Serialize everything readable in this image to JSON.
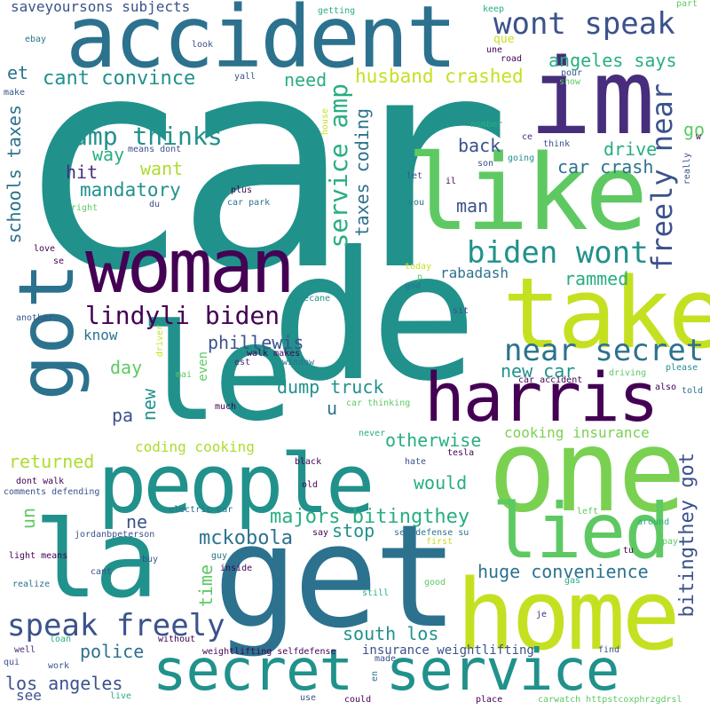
{
  "palette": {
    "deep_purple": "#440154",
    "indigo": "#472d7b",
    "blue_violet": "#3b528b",
    "steel_blue": "#2c728e",
    "teal": "#21918c",
    "sea_green": "#28ae80",
    "green": "#5ec962",
    "lime": "#addc30",
    "yellow_green": "#c5e021"
  },
  "words": [
    {
      "text": "car",
      "color": "#21918c"
    },
    {
      "text": "de",
      "color": "#21918c"
    },
    {
      "text": "accident",
      "color": "#2c728e"
    },
    {
      "text": "im",
      "color": "#472d7b"
    },
    {
      "text": "like",
      "color": "#5ec962"
    },
    {
      "text": "woman",
      "color": "#440154"
    },
    {
      "text": "le",
      "color": "#21918c"
    },
    {
      "text": "got",
      "color": "#2c728e"
    },
    {
      "text": "take",
      "color": "#c5e021"
    },
    {
      "text": "harris",
      "color": "#440154"
    },
    {
      "text": "one",
      "color": "#7ad151"
    },
    {
      "text": "people",
      "color": "#21918c"
    },
    {
      "text": "la",
      "color": "#21918c"
    },
    {
      "text": "get",
      "color": "#2c728e"
    },
    {
      "text": "home",
      "color": "#c5e021"
    },
    {
      "text": "lied",
      "color": "#5ec962"
    },
    {
      "text": "secret service",
      "color": "#21918c"
    },
    {
      "text": "wont speak",
      "color": "#3b528b"
    },
    {
      "text": "angeles says",
      "color": "#28ae80"
    },
    {
      "text": "cant convince",
      "color": "#21918c"
    },
    {
      "text": "husband crashed",
      "color": "#c5e021"
    },
    {
      "text": "amp thinks",
      "color": "#21918c"
    },
    {
      "text": "service amp",
      "color": "#28ae80"
    },
    {
      "text": "freely near",
      "color": "#3b528b"
    },
    {
      "text": "biden wont",
      "color": "#21918c"
    },
    {
      "text": "lindyli biden",
      "color": "#440154"
    },
    {
      "text": "near secret",
      "color": "#2c728e"
    },
    {
      "text": "speak freely",
      "color": "#3b528b"
    },
    {
      "text": "majors bitingthey",
      "color": "#28ae80"
    },
    {
      "text": "mckobola",
      "color": "#2c728e"
    },
    {
      "text": "huge convenience",
      "color": "#2c728e"
    },
    {
      "text": "bitingthey got",
      "color": "#3b528b"
    },
    {
      "text": "car crash",
      "color": "#2c728e"
    },
    {
      "text": "drive",
      "color": "#28ae80"
    },
    {
      "text": "mandatory",
      "color": "#21918c"
    },
    {
      "text": "want",
      "color": "#addc30"
    },
    {
      "text": "way",
      "color": "#28ae80"
    },
    {
      "text": "hit",
      "color": "#472d7b"
    },
    {
      "text": "back",
      "color": "#3b528b"
    },
    {
      "text": "man",
      "color": "#3b528b"
    },
    {
      "text": "need",
      "color": "#28ae80"
    },
    {
      "text": "et",
      "color": "#2c728e"
    },
    {
      "text": "schools taxes",
      "color": "#2c728e"
    },
    {
      "text": "taxes coding",
      "color": "#2c728e"
    },
    {
      "text": "go",
      "color": "#5ec962"
    },
    {
      "text": "rabadash",
      "color": "#2c728e"
    },
    {
      "text": "rammed",
      "color": "#28ae80"
    },
    {
      "text": "phillewis",
      "color": "#3b528b"
    },
    {
      "text": "know",
      "color": "#2c728e"
    },
    {
      "text": "day",
      "color": "#5ec962"
    },
    {
      "text": "pa",
      "color": "#3b528b"
    },
    {
      "text": "new",
      "color": "#21918c"
    },
    {
      "text": "dump truck",
      "color": "#21918c"
    },
    {
      "text": "new car",
      "color": "#21918c"
    },
    {
      "text": "u",
      "color": "#2c728e"
    },
    {
      "text": "otherwise",
      "color": "#28ae80"
    },
    {
      "text": "cooking insurance",
      "color": "#7ad151"
    },
    {
      "text": "coding cooking",
      "color": "#addc30"
    },
    {
      "text": "returned",
      "color": "#addc30"
    },
    {
      "text": "would",
      "color": "#28ae80"
    },
    {
      "text": "ne",
      "color": "#3b528b"
    },
    {
      "text": "un",
      "color": "#5ec962"
    },
    {
      "text": "stop",
      "color": "#21918c"
    },
    {
      "text": "police",
      "color": "#2c728e"
    },
    {
      "text": "time",
      "color": "#5ec962"
    },
    {
      "text": "south los",
      "color": "#21918c"
    },
    {
      "text": "insurance weightlifting",
      "color": "#3b528b"
    },
    {
      "text": "los angeles",
      "color": "#3b528b"
    },
    {
      "text": "see",
      "color": "#3b528b"
    },
    {
      "text": "saveyoursons subjects",
      "color": "#3b528b"
    },
    {
      "text": "getting",
      "color": "#28ae80"
    },
    {
      "text": "que",
      "color": "#c5e021"
    },
    {
      "text": "une",
      "color": "#440154"
    },
    {
      "text": "keep",
      "color": "#28ae80"
    },
    {
      "text": "part",
      "color": "#5ec962"
    },
    {
      "text": "road",
      "color": "#440154"
    },
    {
      "text": "ebay",
      "color": "#2c728e"
    },
    {
      "text": "look",
      "color": "#3b528b"
    },
    {
      "text": "yall",
      "color": "#3b528b"
    },
    {
      "text": "make",
      "color": "#3b528b"
    },
    {
      "text": "pour",
      "color": "#3b528b"
    },
    {
      "text": "show",
      "color": "#5ec962"
    },
    {
      "text": "help",
      "color": "#21918c"
    },
    {
      "text": "number",
      "color": "#28ae80"
    },
    {
      "text": "ce",
      "color": "#472d7b"
    },
    {
      "text": "think",
      "color": "#3b528b"
    },
    {
      "text": "w",
      "color": "#440154"
    },
    {
      "text": "going",
      "color": "#21918c"
    },
    {
      "text": "son",
      "color": "#3b528b"
    },
    {
      "text": "really",
      "color": "#3b528b"
    },
    {
      "text": "house",
      "color": "#c5e021"
    },
    {
      "text": "means dont",
      "color": "#3b528b"
    },
    {
      "text": "il",
      "color": "#440154"
    },
    {
      "text": "let",
      "color": "#3b528b"
    },
    {
      "text": "plus",
      "color": "#440154"
    },
    {
      "text": "right",
      "color": "#5ec962"
    },
    {
      "text": "du",
      "color": "#3b528b"
    },
    {
      "text": "car park",
      "color": "#2c728e"
    },
    {
      "text": "vou",
      "color": "#2c728e"
    },
    {
      "text": "love",
      "color": "#440154"
    },
    {
      "text": "se",
      "color": "#440154"
    },
    {
      "text": "today",
      "color": "#c5e021"
    },
    {
      "text": "p",
      "color": "#5ec962"
    },
    {
      "text": "god",
      "color": "#2c728e"
    },
    {
      "text": "jayecane",
      "color": "#21918c"
    },
    {
      "text": "another",
      "color": "#3b528b"
    },
    {
      "text": "sit",
      "color": "#3b528b"
    },
    {
      "text": "driver",
      "color": "#c5e021"
    },
    {
      "text": "walk makes",
      "color": "#440154"
    },
    {
      "text": "est",
      "color": "#472d7b"
    },
    {
      "text": "window",
      "color": "#2c728e"
    },
    {
      "text": "even",
      "color": "#5ec962"
    },
    {
      "text": "mai",
      "color": "#5ec962"
    },
    {
      "text": "driving",
      "color": "#5ec962"
    },
    {
      "text": "please",
      "color": "#21918c"
    },
    {
      "text": "car accident",
      "color": "#440154"
    },
    {
      "text": "also",
      "color": "#440154"
    },
    {
      "text": "told",
      "color": "#2c728e"
    },
    {
      "text": "much",
      "color": "#440154"
    },
    {
      "text": "car thinking",
      "color": "#5ec962"
    },
    {
      "text": "never",
      "color": "#28ae80"
    },
    {
      "text": "black",
      "color": "#440154"
    },
    {
      "text": "hate",
      "color": "#3b528b"
    },
    {
      "text": "tesla",
      "color": "#440154"
    },
    {
      "text": "dont walk",
      "color": "#440154"
    },
    {
      "text": "comments defending",
      "color": "#3b528b"
    },
    {
      "text": "old",
      "color": "#440154"
    },
    {
      "text": "electric car",
      "color": "#2c728e"
    },
    {
      "text": "inside",
      "color": "#440154"
    },
    {
      "text": "left",
      "color": "#5ec962"
    },
    {
      "text": "jordanbpeterson",
      "color": "#3b528b"
    },
    {
      "text": "say",
      "color": "#440154"
    },
    {
      "text": "selfdefense su",
      "color": "#2c728e"
    },
    {
      "text": "first",
      "color": "#c5e021"
    },
    {
      "text": "around",
      "color": "#28ae80"
    },
    {
      "text": "pay",
      "color": "#5ec962"
    },
    {
      "text": "tu",
      "color": "#440154"
    },
    {
      "text": "light means",
      "color": "#440154"
    },
    {
      "text": "buy",
      "color": "#3b528b"
    },
    {
      "text": "guy",
      "color": "#2c728e"
    },
    {
      "text": "cant",
      "color": "#3b528b"
    },
    {
      "text": "gas",
      "color": "#28ae80"
    },
    {
      "text": "realize",
      "color": "#2c728e"
    },
    {
      "text": "good",
      "color": "#5ec962"
    },
    {
      "text": "still",
      "color": "#28ae80"
    },
    {
      "text": "je",
      "color": "#472d7b"
    },
    {
      "text": "loan",
      "color": "#28ae80"
    },
    {
      "text": "without",
      "color": "#440154"
    },
    {
      "text": "qui",
      "color": "#3b528b"
    },
    {
      "text": "well",
      "color": "#472d7b"
    },
    {
      "text": "work",
      "color": "#3b528b"
    },
    {
      "text": "weightlifting selfdefense",
      "color": "#440154"
    },
    {
      "text": "made",
      "color": "#3b528b"
    },
    {
      "text": "find",
      "color": "#3b528b"
    },
    {
      "text": "en",
      "color": "#2c728e"
    },
    {
      "text": "live",
      "color": "#28ae80"
    },
    {
      "text": "use",
      "color": "#3b528b"
    },
    {
      "text": "could",
      "color": "#440154"
    },
    {
      "text": "place",
      "color": "#440154"
    },
    {
      "text": "carwatch httpstcoxphrzgdrsl",
      "color": "#5ec962"
    }
  ]
}
